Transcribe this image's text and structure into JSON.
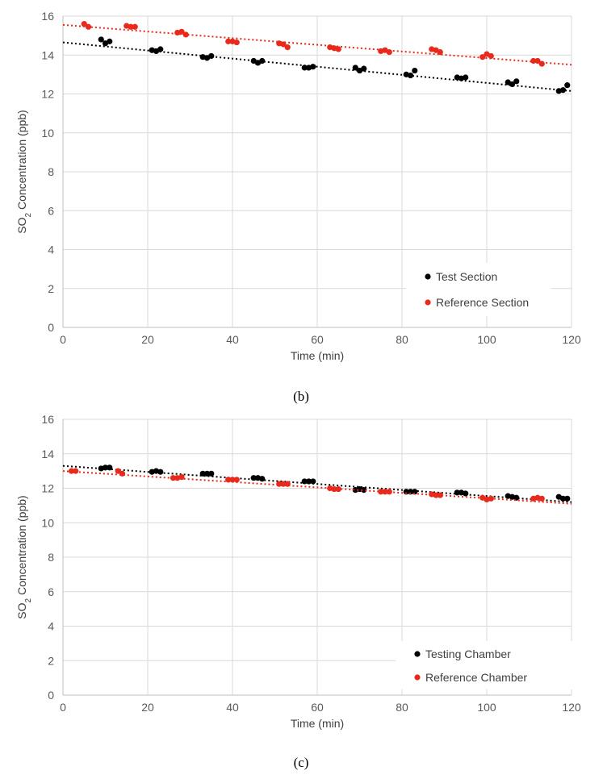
{
  "chart_data": [
    {
      "type": "scatter",
      "panel_label": "(b)",
      "xlabel": "Time (min)",
      "ylabel": {
        "prefix": "SO",
        "subscript": "2",
        "suffix": " Concentration (ppb)"
      },
      "xlim": [
        0,
        120
      ],
      "ylim": [
        0,
        16
      ],
      "xticks": [
        0,
        20,
        40,
        60,
        80,
        100,
        120
      ],
      "yticks": [
        0,
        2,
        4,
        6,
        8,
        10,
        12,
        14,
        16
      ],
      "grid": true,
      "legend_position": "bottom-right",
      "series": [
        {
          "name": "Test Section",
          "color": "#000000",
          "trendline": [
            [
              0,
              14.65
            ],
            [
              120,
              12.15
            ]
          ],
          "points": [
            [
              9,
              14.8
            ],
            [
              10,
              14.6
            ],
            [
              11,
              14.7
            ],
            [
              21,
              14.25
            ],
            [
              22,
              14.2
            ],
            [
              23,
              14.3
            ],
            [
              33,
              13.9
            ],
            [
              34,
              13.85
            ],
            [
              35,
              13.95
            ],
            [
              45,
              13.7
            ],
            [
              46,
              13.6
            ],
            [
              47,
              13.7
            ],
            [
              57,
              13.35
            ],
            [
              58,
              13.35
            ],
            [
              59,
              13.4
            ],
            [
              69,
              13.35
            ],
            [
              70,
              13.2
            ],
            [
              71,
              13.3
            ],
            [
              81,
              13.0
            ],
            [
              82,
              12.95
            ],
            [
              83,
              13.2
            ],
            [
              93,
              12.85
            ],
            [
              94,
              12.8
            ],
            [
              95,
              12.85
            ],
            [
              105,
              12.6
            ],
            [
              106,
              12.5
            ],
            [
              107,
              12.65
            ],
            [
              117,
              12.15
            ],
            [
              118,
              12.2
            ],
            [
              119,
              12.45
            ]
          ]
        },
        {
          "name": "Reference Section",
          "color": "#e8291c",
          "trendline": [
            [
              0,
              15.55
            ],
            [
              120,
              13.5
            ]
          ],
          "points": [
            [
              5,
              15.6
            ],
            [
              6,
              15.45
            ],
            [
              15,
              15.5
            ],
            [
              16,
              15.45
            ],
            [
              17,
              15.45
            ],
            [
              27,
              15.15
            ],
            [
              28,
              15.2
            ],
            [
              29,
              15.05
            ],
            [
              39,
              14.7
            ],
            [
              40,
              14.7
            ],
            [
              41,
              14.65
            ],
            [
              51,
              14.6
            ],
            [
              52,
              14.55
            ],
            [
              53,
              14.4
            ],
            [
              63,
              14.4
            ],
            [
              64,
              14.35
            ],
            [
              65,
              14.3
            ],
            [
              75,
              14.2
            ],
            [
              76,
              14.25
            ],
            [
              77,
              14.15
            ],
            [
              87,
              14.3
            ],
            [
              88,
              14.25
            ],
            [
              89,
              14.15
            ],
            [
              99,
              13.9
            ],
            [
              100,
              14.05
            ],
            [
              101,
              13.95
            ],
            [
              111,
              13.7
            ],
            [
              112,
              13.7
            ],
            [
              113,
              13.55
            ]
          ]
        }
      ]
    },
    {
      "type": "scatter",
      "panel_label": "(c)",
      "xlabel": "Time (min)",
      "ylabel": {
        "prefix": "SO",
        "subscript": "2",
        "suffix": " Concentration (ppb)"
      },
      "xlim": [
        0,
        120
      ],
      "ylim": [
        0,
        16
      ],
      "xticks": [
        0,
        20,
        40,
        60,
        80,
        100,
        120
      ],
      "yticks": [
        0,
        2,
        4,
        6,
        8,
        10,
        12,
        14,
        16
      ],
      "grid": true,
      "legend_position": "bottom-right",
      "series": [
        {
          "name": "Testing Chamber",
          "color": "#000000",
          "trendline": [
            [
              0,
              13.3
            ],
            [
              120,
              11.2
            ]
          ],
          "points": [
            [
              9,
              13.15
            ],
            [
              10,
              13.2
            ],
            [
              11,
              13.2
            ],
            [
              21,
              12.95
            ],
            [
              22,
              13.0
            ],
            [
              23,
              12.95
            ],
            [
              33,
              12.85
            ],
            [
              34,
              12.85
            ],
            [
              35,
              12.85
            ],
            [
              45,
              12.6
            ],
            [
              46,
              12.6
            ],
            [
              47,
              12.55
            ],
            [
              57,
              12.4
            ],
            [
              58,
              12.4
            ],
            [
              59,
              12.4
            ],
            [
              69,
              11.9
            ],
            [
              70,
              11.95
            ],
            [
              71,
              11.9
            ],
            [
              81,
              11.8
            ],
            [
              82,
              11.8
            ],
            [
              83,
              11.8
            ],
            [
              93,
              11.75
            ],
            [
              94,
              11.75
            ],
            [
              95,
              11.7
            ],
            [
              105,
              11.55
            ],
            [
              106,
              11.5
            ],
            [
              107,
              11.45
            ],
            [
              117,
              11.5
            ],
            [
              118,
              11.4
            ],
            [
              119,
              11.4
            ]
          ]
        },
        {
          "name": "Reference Chamber",
          "color": "#e8291c",
          "trendline": [
            [
              0,
              13.0
            ],
            [
              120,
              11.1
            ]
          ],
          "points": [
            [
              2,
              13.0
            ],
            [
              3,
              13.0
            ],
            [
              13,
              13.0
            ],
            [
              14,
              12.85
            ],
            [
              26,
              12.6
            ],
            [
              27,
              12.6
            ],
            [
              28,
              12.65
            ],
            [
              39,
              12.5
            ],
            [
              40,
              12.5
            ],
            [
              41,
              12.5
            ],
            [
              51,
              12.25
            ],
            [
              52,
              12.25
            ],
            [
              53,
              12.25
            ],
            [
              63,
              12.0
            ],
            [
              64,
              11.95
            ],
            [
              65,
              11.95
            ],
            [
              75,
              11.8
            ],
            [
              76,
              11.8
            ],
            [
              77,
              11.8
            ],
            [
              87,
              11.65
            ],
            [
              88,
              11.6
            ],
            [
              89,
              11.6
            ],
            [
              99,
              11.45
            ],
            [
              100,
              11.35
            ],
            [
              101,
              11.4
            ],
            [
              111,
              11.4
            ],
            [
              112,
              11.45
            ],
            [
              113,
              11.4
            ]
          ]
        }
      ]
    }
  ]
}
